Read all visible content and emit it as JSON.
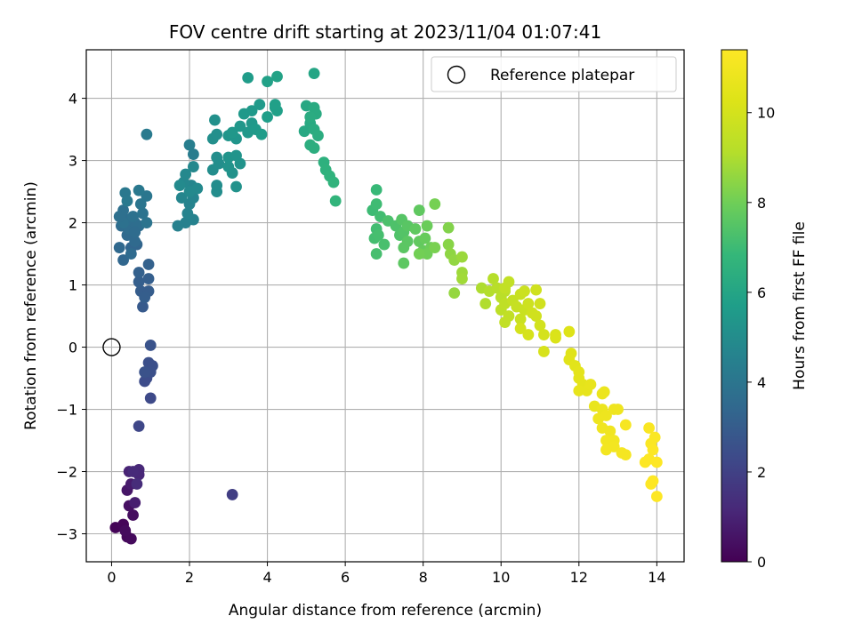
{
  "chart_data": {
    "type": "scatter",
    "title": "FOV centre drift starting at 2023/11/04 01:07:41",
    "xlabel": "Angular distance from reference (arcmin)",
    "ylabel": "Rotation from reference (arcmin)",
    "xlim": [
      -0.65,
      14.7
    ],
    "ylim": [
      -3.45,
      4.78
    ],
    "xticks": [
      0,
      2,
      4,
      6,
      8,
      10,
      12,
      14
    ],
    "yticks": [
      -3,
      -2,
      -1,
      0,
      1,
      2,
      3,
      4
    ],
    "xtick_labels": [
      "0",
      "2",
      "4",
      "6",
      "8",
      "10",
      "12",
      "14"
    ],
    "ytick_labels": [
      "−3",
      "−2",
      "−1",
      "0",
      "1",
      "2",
      "3",
      "4"
    ],
    "grid": true,
    "legend": {
      "position": "top-right",
      "entries": [
        {
          "label": "Reference platepar",
          "marker": "open-circle"
        }
      ]
    },
    "reference_point": {
      "x": 0,
      "y": 0
    },
    "colorbar": {
      "label": "Hours from first FF file",
      "range": [
        0,
        11.4
      ],
      "ticks": [
        0,
        2,
        4,
        6,
        8,
        10
      ],
      "tick_labels": [
        "0",
        "2",
        "4",
        "6",
        "8",
        "10"
      ],
      "colormap": "viridis"
    },
    "points_note": "each point: [x, y, hours]",
    "points": [
      [
        0.1,
        -2.9,
        0.1
      ],
      [
        0.3,
        -2.85,
        0.15
      ],
      [
        0.4,
        -3.05,
        0.2
      ],
      [
        0.5,
        -3.08,
        0.25
      ],
      [
        0.35,
        -2.95,
        0.3
      ],
      [
        0.55,
        -2.7,
        0.35
      ],
      [
        0.45,
        -2.55,
        0.45
      ],
      [
        0.4,
        -2.3,
        0.6
      ],
      [
        0.5,
        -2.2,
        0.75
      ],
      [
        0.6,
        -2.5,
        0.85
      ],
      [
        0.45,
        -2.0,
        1.0
      ],
      [
        0.7,
        -2.05,
        1.1
      ],
      [
        0.7,
        -1.97,
        1.15
      ],
      [
        0.55,
        -2.0,
        1.2
      ],
      [
        0.65,
        -2.2,
        1.3
      ],
      [
        3.1,
        -2.37,
        1.9
      ],
      [
        0.7,
        -1.27,
        2.2
      ],
      [
        1.0,
        -0.82,
        2.3
      ],
      [
        0.85,
        -0.55,
        2.4
      ],
      [
        0.9,
        -0.5,
        2.4
      ],
      [
        0.95,
        -0.25,
        2.5
      ],
      [
        1.05,
        -0.3,
        2.5
      ],
      [
        1.0,
        -0.4,
        2.55
      ],
      [
        0.85,
        -0.4,
        2.6
      ],
      [
        1.0,
        0.03,
        2.65
      ],
      [
        0.8,
        0.65,
        2.9
      ],
      [
        0.75,
        0.9,
        3.0
      ],
      [
        0.95,
        0.9,
        3.0
      ],
      [
        0.85,
        0.8,
        3.05
      ],
      [
        0.7,
        1.05,
        3.1
      ],
      [
        0.95,
        1.1,
        3.1
      ],
      [
        0.7,
        1.2,
        3.15
      ],
      [
        0.95,
        1.33,
        3.2
      ],
      [
        0.65,
        1.65,
        3.3
      ],
      [
        0.5,
        1.6,
        3.35
      ],
      [
        0.3,
        1.4,
        3.4
      ],
      [
        0.2,
        1.6,
        3.45
      ],
      [
        0.4,
        1.8,
        3.5
      ],
      [
        0.6,
        1.7,
        3.5
      ],
      [
        0.5,
        1.5,
        3.55
      ],
      [
        0.25,
        1.95,
        3.6
      ],
      [
        0.45,
        1.9,
        3.65
      ],
      [
        0.6,
        2.0,
        3.65
      ],
      [
        0.7,
        1.95,
        3.7
      ],
      [
        0.4,
        2.05,
        3.7
      ],
      [
        0.3,
        2.2,
        3.75
      ],
      [
        0.55,
        2.1,
        3.8
      ],
      [
        0.3,
        2.0,
        3.8
      ],
      [
        0.8,
        2.15,
        3.9
      ],
      [
        0.9,
        2.0,
        3.95
      ],
      [
        0.75,
        2.3,
        4.0
      ],
      [
        0.9,
        2.43,
        4.05
      ],
      [
        0.7,
        2.52,
        4.1
      ],
      [
        0.35,
        2.48,
        4.1
      ],
      [
        0.4,
        2.35,
        4.15
      ],
      [
        0.9,
        3.42,
        4.2
      ],
      [
        0.2,
        2.1,
        3.75
      ],
      [
        0.6,
        1.85,
        3.6
      ],
      [
        2.1,
        3.1,
        4.3
      ],
      [
        2.0,
        3.25,
        4.4
      ],
      [
        1.9,
        2.0,
        4.5
      ],
      [
        1.7,
        1.95,
        4.5
      ],
      [
        2.1,
        2.05,
        4.55
      ],
      [
        1.95,
        2.15,
        4.6
      ],
      [
        2.0,
        2.3,
        4.6
      ],
      [
        2.1,
        2.4,
        4.65
      ],
      [
        1.8,
        2.4,
        4.7
      ],
      [
        2.05,
        2.6,
        4.7
      ],
      [
        1.85,
        2.65,
        4.75
      ],
      [
        1.9,
        2.78,
        4.8
      ],
      [
        2.1,
        2.9,
        4.8
      ],
      [
        2.2,
        2.55,
        4.85
      ],
      [
        2.0,
        2.5,
        4.85
      ],
      [
        1.75,
        2.6,
        4.9
      ],
      [
        2.7,
        2.5,
        5.0
      ],
      [
        2.7,
        2.6,
        5.0
      ],
      [
        2.6,
        2.85,
        5.0
      ],
      [
        2.75,
        2.95,
        5.05
      ],
      [
        2.7,
        3.05,
        5.05
      ],
      [
        2.6,
        3.35,
        5.1
      ],
      [
        2.7,
        3.42,
        5.1
      ],
      [
        2.65,
        3.65,
        5.15
      ],
      [
        3.2,
        2.58,
        5.2
      ],
      [
        3.1,
        2.8,
        5.2
      ],
      [
        3.0,
        2.9,
        5.25
      ],
      [
        3.3,
        2.95,
        5.25
      ],
      [
        3.0,
        3.05,
        5.3
      ],
      [
        3.2,
        3.08,
        5.3
      ],
      [
        3.0,
        3.4,
        5.35
      ],
      [
        3.2,
        3.35,
        5.35
      ],
      [
        3.1,
        3.45,
        5.4
      ],
      [
        3.3,
        3.55,
        5.4
      ],
      [
        3.5,
        3.45,
        5.45
      ],
      [
        3.6,
        3.6,
        5.45
      ],
      [
        3.4,
        3.75,
        5.5
      ],
      [
        3.6,
        3.8,
        5.5
      ],
      [
        3.7,
        3.5,
        5.55
      ],
      [
        3.8,
        3.9,
        5.55
      ],
      [
        3.85,
        3.42,
        5.6
      ],
      [
        3.5,
        4.33,
        5.6
      ],
      [
        4.0,
        3.7,
        5.7
      ],
      [
        4.2,
        3.85,
        5.75
      ],
      [
        4.25,
        3.8,
        5.8
      ],
      [
        4.2,
        3.9,
        5.8
      ],
      [
        4.0,
        4.27,
        5.85
      ],
      [
        4.25,
        4.35,
        5.9
      ],
      [
        5.2,
        4.4,
        6.0
      ],
      [
        5.0,
        3.88,
        6.1
      ],
      [
        4.95,
        3.47,
        6.15
      ],
      [
        5.1,
        3.6,
        6.2
      ],
      [
        5.2,
        3.85,
        6.25
      ],
      [
        5.25,
        3.75,
        6.25
      ],
      [
        5.1,
        3.7,
        6.3
      ],
      [
        5.2,
        3.5,
        6.3
      ],
      [
        5.3,
        3.4,
        6.35
      ],
      [
        5.1,
        3.25,
        6.4
      ],
      [
        5.2,
        3.2,
        6.4
      ],
      [
        5.45,
        2.97,
        6.5
      ],
      [
        5.5,
        2.85,
        6.55
      ],
      [
        5.6,
        2.75,
        6.6
      ],
      [
        5.7,
        2.65,
        6.65
      ],
      [
        5.75,
        2.35,
        6.7
      ],
      [
        6.8,
        2.53,
        6.9
      ],
      [
        6.7,
        2.2,
        7.0
      ],
      [
        6.8,
        2.3,
        7.05
      ],
      [
        6.9,
        2.1,
        7.1
      ],
      [
        6.8,
        1.9,
        7.1
      ],
      [
        6.75,
        1.75,
        7.15
      ],
      [
        6.85,
        1.8,
        7.2
      ],
      [
        6.8,
        1.5,
        7.2
      ],
      [
        7.0,
        1.65,
        7.25
      ],
      [
        7.1,
        2.03,
        7.3
      ],
      [
        7.3,
        1.95,
        7.35
      ],
      [
        7.4,
        1.8,
        7.4
      ],
      [
        7.5,
        1.85,
        7.45
      ],
      [
        7.45,
        2.05,
        7.5
      ],
      [
        7.6,
        1.95,
        7.55
      ],
      [
        7.5,
        1.6,
        7.6
      ],
      [
        7.6,
        1.7,
        7.6
      ],
      [
        7.5,
        1.35,
        7.65
      ],
      [
        7.8,
        1.9,
        7.7
      ],
      [
        7.9,
        2.2,
        7.7
      ],
      [
        7.9,
        1.7,
        7.75
      ],
      [
        8.0,
        1.55,
        7.8
      ],
      [
        8.05,
        1.75,
        7.85
      ],
      [
        8.1,
        1.95,
        7.9
      ],
      [
        8.2,
        1.6,
        7.95
      ],
      [
        8.1,
        1.5,
        8.0
      ],
      [
        7.9,
        1.5,
        8.05
      ],
      [
        8.3,
        2.3,
        8.1
      ],
      [
        8.3,
        1.6,
        8.15
      ],
      [
        8.65,
        1.92,
        8.3
      ],
      [
        8.65,
        1.65,
        8.4
      ],
      [
        8.7,
        1.5,
        8.5
      ],
      [
        8.8,
        1.4,
        8.55
      ],
      [
        8.8,
        0.87,
        8.6
      ],
      [
        9.0,
        1.45,
        8.7
      ],
      [
        9.0,
        1.2,
        8.75
      ],
      [
        9.0,
        1.1,
        8.8
      ],
      [
        9.5,
        0.95,
        9.0
      ],
      [
        9.6,
        0.7,
        9.05
      ],
      [
        9.7,
        0.9,
        9.1
      ],
      [
        9.8,
        1.1,
        9.15
      ],
      [
        9.9,
        0.95,
        9.2
      ],
      [
        10.0,
        0.8,
        9.25
      ],
      [
        10.1,
        0.9,
        9.3
      ],
      [
        10.0,
        0.6,
        9.35
      ],
      [
        10.1,
        0.7,
        9.4
      ],
      [
        10.2,
        0.5,
        9.45
      ],
      [
        10.1,
        0.95,
        9.5
      ],
      [
        10.2,
        1.05,
        9.5
      ],
      [
        10.3,
        0.75,
        9.55
      ],
      [
        10.4,
        0.65,
        9.6
      ],
      [
        10.5,
        0.85,
        9.65
      ],
      [
        10.5,
        0.45,
        9.7
      ],
      [
        10.6,
        0.6,
        9.7
      ],
      [
        10.6,
        0.9,
        9.75
      ],
      [
        10.7,
        0.7,
        9.8
      ],
      [
        10.8,
        0.55,
        9.85
      ],
      [
        10.9,
        0.92,
        9.85
      ],
      [
        10.9,
        0.5,
        9.9
      ],
      [
        11.0,
        0.7,
        9.9
      ],
      [
        11.0,
        0.35,
        9.95
      ],
      [
        11.1,
        0.2,
        10.0
      ],
      [
        10.5,
        0.3,
        10.0
      ],
      [
        10.1,
        0.4,
        9.45
      ],
      [
        10.7,
        0.2,
        10.05
      ],
      [
        11.1,
        -0.07,
        10.1
      ],
      [
        11.4,
        0.2,
        10.15
      ],
      [
        11.4,
        0.15,
        10.2
      ],
      [
        11.75,
        0.25,
        10.3
      ],
      [
        11.8,
        -0.1,
        10.35
      ],
      [
        11.75,
        -0.2,
        10.4
      ],
      [
        11.9,
        -0.3,
        10.45
      ],
      [
        12.0,
        -0.4,
        10.5
      ],
      [
        12.0,
        -0.5,
        10.5
      ],
      [
        12.1,
        -0.6,
        10.55
      ],
      [
        12.2,
        -0.7,
        10.6
      ],
      [
        12.0,
        -0.7,
        10.6
      ],
      [
        12.3,
        -0.6,
        10.65
      ],
      [
        12.4,
        -0.95,
        10.7
      ],
      [
        12.6,
        -0.75,
        10.75
      ],
      [
        12.65,
        -0.72,
        10.8
      ],
      [
        12.6,
        -1.0,
        10.8
      ],
      [
        12.7,
        -1.1,
        10.85
      ],
      [
        12.5,
        -1.15,
        10.85
      ],
      [
        12.9,
        -1.0,
        10.9
      ],
      [
        13.0,
        -1.0,
        10.9
      ],
      [
        12.6,
        -1.3,
        10.95
      ],
      [
        12.8,
        -1.35,
        10.95
      ],
      [
        12.7,
        -1.5,
        11.0
      ],
      [
        12.9,
        -1.5,
        11.0
      ],
      [
        12.9,
        -1.6,
        11.05
      ],
      [
        12.7,
        -1.65,
        11.05
      ],
      [
        13.1,
        -1.7,
        11.1
      ],
      [
        13.2,
        -1.73,
        11.1
      ],
      [
        13.2,
        -1.25,
        11.15
      ],
      [
        13.8,
        -1.3,
        11.25
      ],
      [
        13.85,
        -1.55,
        11.3
      ],
      [
        13.95,
        -1.45,
        11.3
      ],
      [
        13.9,
        -1.65,
        11.35
      ],
      [
        13.8,
        -1.8,
        11.35
      ],
      [
        13.7,
        -1.85,
        11.38
      ],
      [
        14.0,
        -1.85,
        11.4
      ],
      [
        13.9,
        -2.15,
        11.4
      ],
      [
        13.85,
        -2.2,
        11.4
      ],
      [
        14.0,
        -2.4,
        11.4
      ]
    ]
  }
}
